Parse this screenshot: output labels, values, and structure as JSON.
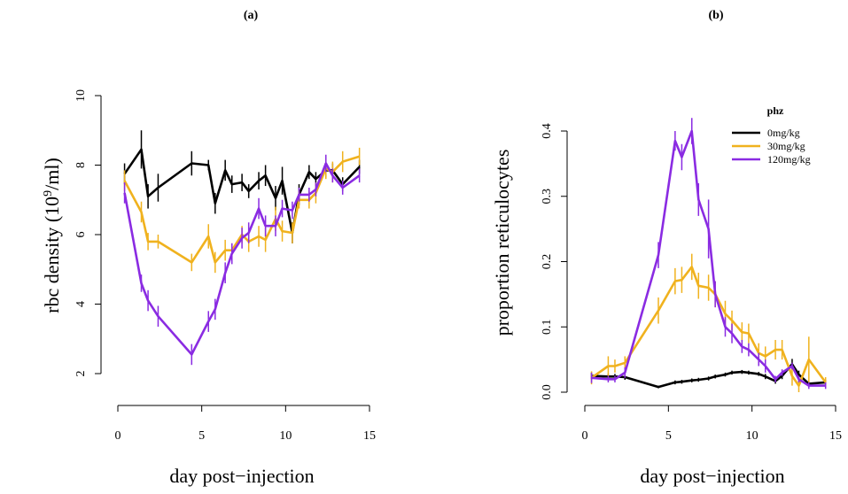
{
  "chart_data": [
    {
      "type": "line",
      "panel_label": "(a)",
      "xlabel": "day post−injection",
      "ylabel_main": "rbc density (10",
      "ylabel_sup": "9",
      "ylabel_end": "/ml)",
      "xlim": [
        0,
        15
      ],
      "ylim": [
        2,
        10
      ],
      "xticks": [
        0,
        5,
        10,
        15
      ],
      "yticks": [
        2,
        4,
        6,
        8,
        10
      ],
      "x": [
        0.4,
        1.4,
        1.8,
        2.4,
        4.4,
        5.4,
        5.8,
        6.4,
        6.8,
        7.4,
        7.8,
        8.4,
        8.8,
        9.4,
        9.8,
        10.4,
        10.8,
        11.4,
        11.8,
        12.4,
        12.8,
        13.4,
        14.4
      ],
      "series": [
        {
          "name": "0mg/kg",
          "color": "#000000",
          "values": [
            7.75,
            8.45,
            7.1,
            7.35,
            8.05,
            8.0,
            6.9,
            7.85,
            7.45,
            7.5,
            7.25,
            7.55,
            7.7,
            7.05,
            7.55,
            6.05,
            7.15,
            7.8,
            7.6,
            7.85,
            7.85,
            7.45,
            7.95
          ],
          "errors": [
            0.3,
            0.55,
            0.35,
            0.4,
            0.35,
            0.15,
            0.3,
            0.3,
            0.25,
            0.25,
            0.2,
            0.25,
            0.3,
            0.35,
            0.4,
            0.3,
            0.3,
            0.2,
            0.2,
            0.2,
            0.2,
            0.2,
            0.2
          ]
        },
        {
          "name": "30mg/kg",
          "color": "#f0b21e",
          "values": [
            7.55,
            6.65,
            5.8,
            5.8,
            5.2,
            5.95,
            5.2,
            5.55,
            5.55,
            6.0,
            5.8,
            5.95,
            5.85,
            6.45,
            6.1,
            6.05,
            7.0,
            7.0,
            7.2,
            7.9,
            7.8,
            8.1,
            8.25
          ],
          "errors": [
            0.3,
            0.3,
            0.25,
            0.2,
            0.25,
            0.35,
            0.3,
            0.3,
            0.2,
            0.25,
            0.3,
            0.3,
            0.35,
            0.35,
            0.3,
            0.3,
            0.25,
            0.25,
            0.3,
            0.3,
            0.3,
            0.3,
            0.25
          ]
        },
        {
          "name": "120mg/kg",
          "color": "#8a2be2",
          "values": [
            7.2,
            4.6,
            4.1,
            3.65,
            2.55,
            3.5,
            3.85,
            4.9,
            5.45,
            5.9,
            6.05,
            6.75,
            6.25,
            6.25,
            6.75,
            6.7,
            7.15,
            7.15,
            7.3,
            8.05,
            7.7,
            7.35,
            7.7
          ],
          "errors": [
            0.3,
            0.25,
            0.3,
            0.3,
            0.3,
            0.3,
            0.3,
            0.3,
            0.3,
            0.3,
            0.3,
            0.3,
            0.3,
            0.3,
            0.25,
            0.25,
            0.2,
            0.2,
            0.2,
            0.25,
            0.2,
            0.2,
            0.2
          ]
        }
      ]
    },
    {
      "type": "line",
      "panel_label": "(b)",
      "xlabel": "day post−injection",
      "ylabel": "proportion reticulocytes",
      "xlim": [
        0,
        15
      ],
      "ylim": [
        0,
        0.4
      ],
      "xticks": [
        0,
        5,
        10,
        15
      ],
      "yticks": [
        0.0,
        0.1,
        0.2,
        0.3,
        0.4
      ],
      "ytick_labels": [
        "0.0",
        "0.1",
        "0.2",
        "0.3",
        "0.4"
      ],
      "legend": {
        "title": "phz",
        "position": "top-right",
        "entries": [
          "0mg/kg",
          "30mg/kg",
          "120mg/kg"
        ]
      },
      "x": [
        0.4,
        1.4,
        1.8,
        2.4,
        4.4,
        5.4,
        5.8,
        6.4,
        6.8,
        7.4,
        7.8,
        8.4,
        8.8,
        9.4,
        9.8,
        10.4,
        10.8,
        11.4,
        11.8,
        12.4,
        12.8,
        13.4,
        14.4
      ],
      "series": [
        {
          "name": "0mg/kg",
          "color": "#000000",
          "values": [
            0.025,
            0.024,
            0.024,
            0.023,
            0.008,
            0.015,
            0.016,
            0.018,
            0.019,
            0.021,
            0.024,
            0.027,
            0.03,
            0.031,
            0.03,
            0.028,
            0.024,
            0.017,
            0.025,
            0.043,
            0.027,
            0.013,
            0.015
          ],
          "errors": [
            0.005,
            0.004,
            0.004,
            0.004,
            0.002,
            0.003,
            0.003,
            0.003,
            0.003,
            0.003,
            0.003,
            0.003,
            0.003,
            0.003,
            0.003,
            0.003,
            0.004,
            0.004,
            0.005,
            0.008,
            0.006,
            0.004,
            0.004
          ]
        },
        {
          "name": "30mg/kg",
          "color": "#f0b21e",
          "values": [
            0.022,
            0.04,
            0.04,
            0.045,
            0.125,
            0.17,
            0.172,
            0.192,
            0.163,
            0.16,
            0.15,
            0.12,
            0.11,
            0.092,
            0.09,
            0.06,
            0.055,
            0.065,
            0.065,
            0.025,
            0.01,
            0.05,
            0.015
          ],
          "errors": [
            0.01,
            0.015,
            0.01,
            0.01,
            0.02,
            0.02,
            0.02,
            0.02,
            0.02,
            0.02,
            0.02,
            0.02,
            0.015,
            0.015,
            0.015,
            0.015,
            0.015,
            0.015,
            0.015,
            0.015,
            0.01,
            0.035,
            0.008
          ]
        },
        {
          "name": "120mg/kg",
          "color": "#8a2be2",
          "values": [
            0.022,
            0.02,
            0.02,
            0.03,
            0.21,
            0.385,
            0.36,
            0.4,
            0.295,
            0.25,
            0.15,
            0.1,
            0.09,
            0.07,
            0.065,
            0.05,
            0.04,
            0.02,
            0.03,
            0.04,
            0.02,
            0.01,
            0.01
          ],
          "errors": [
            0.008,
            0.005,
            0.005,
            0.008,
            0.02,
            0.015,
            0.02,
            0.02,
            0.025,
            0.045,
            0.02,
            0.015,
            0.015,
            0.01,
            0.01,
            0.01,
            0.01,
            0.005,
            0.005,
            0.005,
            0.005,
            0.005,
            0.005
          ]
        }
      ]
    }
  ]
}
